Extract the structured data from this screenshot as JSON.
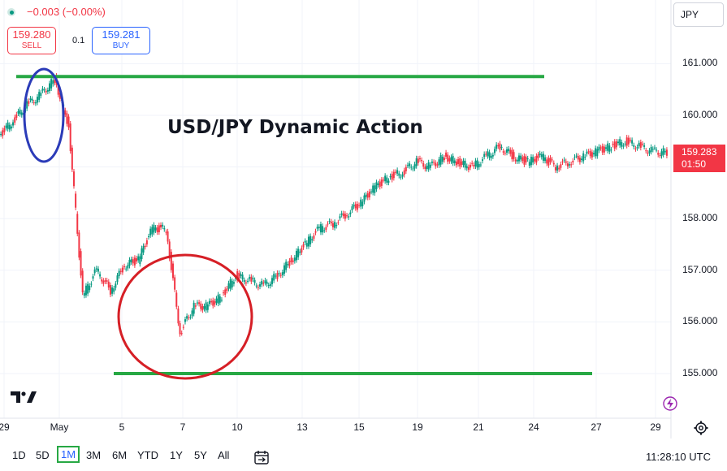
{
  "header": {
    "change": "−0.003 (−0.00%)",
    "sell_price": "159.280",
    "sell_label": "SELL",
    "spread": "0.1",
    "buy_price": "159.281",
    "buy_label": "BUY",
    "currency": "JPY"
  },
  "last_price": {
    "price": "159.283",
    "countdown": "01:50"
  },
  "timeframes": [
    "1D",
    "5D",
    "1M",
    "3M",
    "6M",
    "YTD",
    "1Y",
    "5Y",
    "All"
  ],
  "selected_timeframe": "1M",
  "clock": "11:28:10 UTC",
  "colors": {
    "up": "#089981",
    "down": "#f23645",
    "level_lines": "#27a844",
    "circle_high": "#2b3bb8",
    "circle_low": "#d61f26"
  },
  "icons": [
    "tradingview-logo-icon",
    "settings-icon",
    "lightning-icon",
    "date-range-icon"
  ],
  "chart_data": {
    "type": "line",
    "title": "USD/JPY Dynamic Action",
    "xlabel": "",
    "ylabel": "",
    "ylim": [
      154.5,
      161.3
    ],
    "yticks": [
      "161.000",
      "160.000",
      "159.000",
      "158.000",
      "157.000",
      "156.000",
      "155.000"
    ],
    "xticks": [
      "29",
      "May",
      "5",
      "7",
      "10",
      "13",
      "15",
      "19",
      "21",
      "24",
      "27",
      "29"
    ],
    "series": [
      {
        "x": [
          "Apr 29",
          "Apr 29",
          "Apr 29",
          "Apr 30",
          "Apr 30",
          "Apr 30",
          "May 1",
          "May 1",
          "May 2",
          "May 2",
          "May 3",
          "May 3",
          "May 3",
          "May 6",
          "May 6",
          "May 7",
          "May 7",
          "May 8",
          "May 8",
          "May 9",
          "May 9",
          "May 10",
          "May 10",
          "May 13",
          "May 13",
          "May 14",
          "May 14",
          "May 15",
          "May 15",
          "May 16",
          "May 17",
          "May 17",
          "May 20",
          "May 20",
          "May 21",
          "May 21",
          "May 22",
          "May 22",
          "May 23",
          "May 23",
          "May 24",
          "May 24",
          "May 27",
          "May 27",
          "May 28",
          "May 28",
          "May 29",
          "May 29",
          "May 29"
        ],
        "values": [
          159.6,
          159.9,
          160.2,
          160.4,
          160.7,
          159.8,
          156.5,
          157.0,
          156.6,
          157.1,
          157.2,
          157.8,
          157.8,
          155.8,
          156.3,
          156.3,
          156.5,
          156.9,
          156.8,
          156.7,
          156.9,
          157.2,
          157.5,
          157.8,
          157.9,
          158.1,
          158.3,
          158.6,
          158.8,
          158.9,
          159.1,
          159.0,
          159.2,
          159.1,
          159.0,
          159.2,
          159.4,
          159.2,
          159.1,
          159.2,
          159.0,
          159.1,
          159.2,
          159.3,
          159.4,
          159.5,
          159.4,
          159.3,
          159.28
        ]
      }
    ],
    "annotations": [
      {
        "type": "horizontal-line",
        "value": 160.75
      },
      {
        "type": "horizontal-line",
        "value": 155.0
      },
      {
        "type": "ellipse",
        "label": ""
      },
      {
        "type": "ellipse",
        "label": ""
      }
    ],
    "legend": "none",
    "grid": true
  }
}
